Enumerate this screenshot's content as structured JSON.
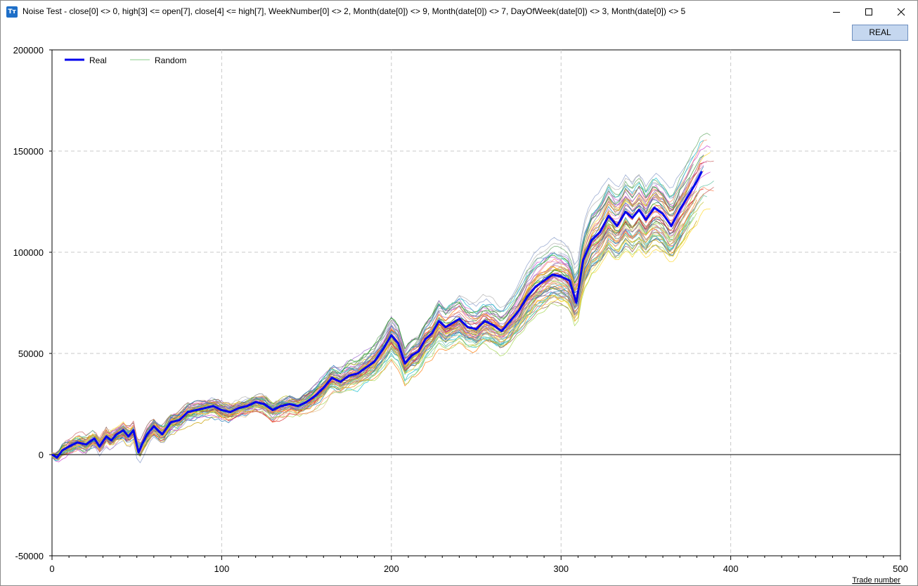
{
  "window": {
    "title": "Noise Test - close[0] <> 0, high[3] <= open[7], close[4] <= high[7], WeekNumber[0] <> 2, Month(date[0]) <> 9, Month(date[0]) <> 7, DayOfWeek(date[0]) <> 3, Month(date[0]) <> 5",
    "app_icon_text": "Tт",
    "controls": {
      "minimize_icon": "minimize-icon",
      "maximize_icon": "maximize-icon",
      "close_icon": "close-icon"
    }
  },
  "toolbar": {
    "real_button_label": "REAL"
  },
  "colors": {
    "real_series": "#0000ee",
    "random_legend": "#88cc88",
    "accent_button": "#c5d7ef"
  },
  "chart_data": {
    "type": "line",
    "xlabel": "Trade number",
    "ylabel": "",
    "xlim": [
      0,
      500
    ],
    "ylim": [
      -50000,
      200000
    ],
    "x_ticks": [
      0,
      100,
      200,
      300,
      400,
      500
    ],
    "y_ticks": [
      -50000,
      0,
      50000,
      100000,
      150000,
      200000
    ],
    "x_tick_labels": [
      "0",
      "100",
      "200",
      "300",
      "400",
      "500"
    ],
    "y_tick_labels": [
      "-50000",
      "0",
      "50000",
      "100000",
      "150000",
      "200000"
    ],
    "grid": true,
    "legend_placement": "top-left",
    "legend": [
      "Real",
      "Random"
    ],
    "series": [
      {
        "name": "Real",
        "role": "real",
        "x": [
          0,
          3,
          6,
          10,
          15,
          20,
          25,
          28,
          32,
          35,
          38,
          42,
          45,
          48,
          51,
          53,
          56,
          60,
          65,
          70,
          75,
          80,
          85,
          90,
          95,
          100,
          105,
          110,
          115,
          120,
          125,
          130,
          135,
          140,
          145,
          150,
          155,
          160,
          165,
          170,
          175,
          180,
          185,
          190,
          195,
          200,
          204,
          208,
          212,
          216,
          220,
          224,
          228,
          232,
          236,
          240,
          245,
          250,
          255,
          260,
          265,
          270,
          275,
          280,
          285,
          290,
          295,
          300,
          305,
          309,
          313,
          318,
          323,
          328,
          333,
          338,
          342,
          346,
          350,
          355,
          360,
          365,
          370,
          375,
          380,
          383
        ],
        "y": [
          0,
          -1500,
          2000,
          4000,
          6000,
          5000,
          8000,
          4000,
          9000,
          7000,
          10000,
          12000,
          9000,
          12000,
          1000,
          5000,
          10000,
          14000,
          10000,
          16000,
          17000,
          21000,
          22000,
          23000,
          24000,
          22000,
          21000,
          23000,
          24000,
          26000,
          25000,
          22000,
          24000,
          25000,
          24000,
          26000,
          29000,
          33000,
          38000,
          36000,
          39000,
          40000,
          43000,
          46000,
          52000,
          59000,
          55000,
          45000,
          49000,
          51000,
          57000,
          60000,
          66000,
          63000,
          65000,
          67000,
          63000,
          62000,
          66000,
          64000,
          61000,
          66000,
          71000,
          78000,
          83000,
          86000,
          89000,
          88000,
          86000,
          75000,
          96000,
          106000,
          110000,
          118000,
          113000,
          120000,
          117000,
          121000,
          116000,
          122000,
          119000,
          113000,
          121000,
          128000,
          135000,
          140000
        ]
      }
    ]
  }
}
